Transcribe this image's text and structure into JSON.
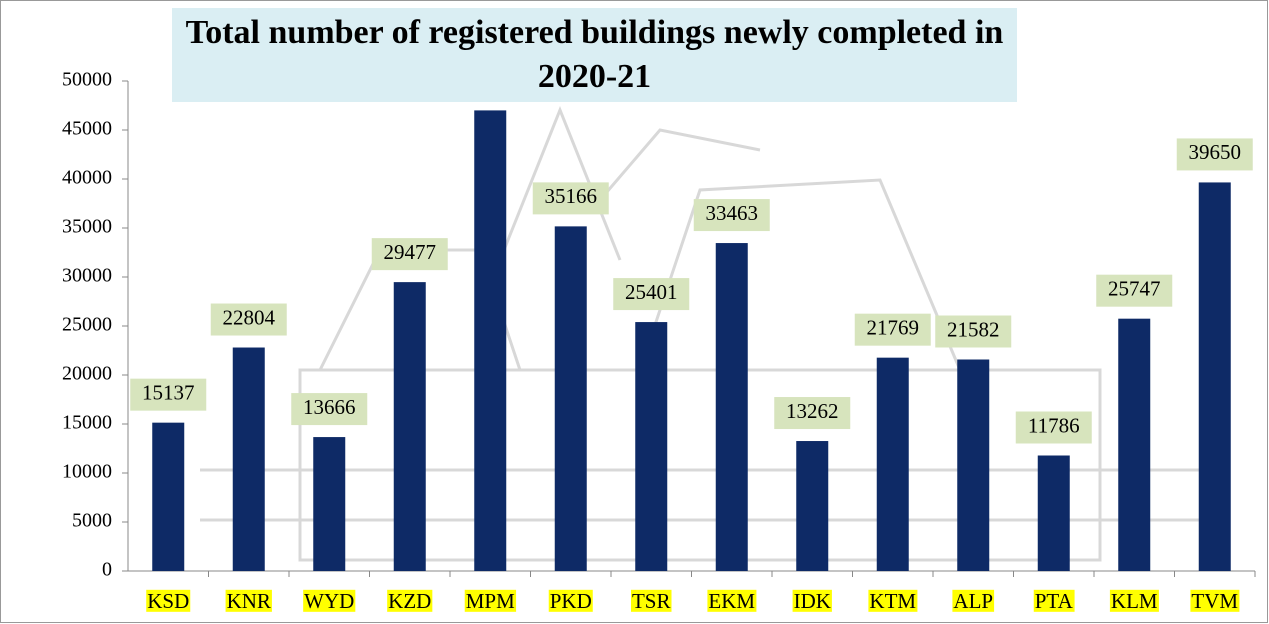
{
  "chart_data": {
    "type": "bar",
    "title": "Total number of registered buildings newly completed in 2020-21",
    "categories": [
      "KSD",
      "KNR",
      "WYD",
      "KZD",
      "MPM",
      "PKD",
      "TSR",
      "EKM",
      "IDK",
      "KTM",
      "ALP",
      "PTA",
      "KLM",
      "TVM"
    ],
    "values": [
      15137,
      22804,
      13666,
      29477,
      47000,
      35166,
      25401,
      33463,
      13262,
      21769,
      21582,
      11786,
      25747,
      39650
    ],
    "labeled": [
      true,
      true,
      true,
      true,
      false,
      true,
      true,
      true,
      true,
      true,
      true,
      true,
      true,
      true
    ],
    "color": "#0e2a66",
    "ylim": [
      0,
      50000
    ],
    "yticks": [
      0,
      5000,
      10000,
      15000,
      20000,
      25000,
      30000,
      35000,
      40000,
      45000,
      50000
    ]
  }
}
